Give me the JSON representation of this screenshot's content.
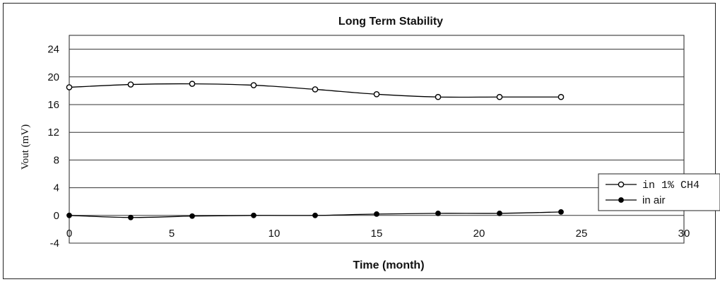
{
  "chart_data": {
    "type": "line",
    "title": "Long Term Stability",
    "xlabel": "Time (month)",
    "ylabel": "Vout (mV)",
    "xlim": [
      0,
      30
    ],
    "ylim": [
      -4,
      26
    ],
    "x_ticks": [
      "0",
      "5",
      "10",
      "15",
      "20",
      "25",
      "30"
    ],
    "y_ticks": [
      "-4",
      "0",
      "4",
      "8",
      "12",
      "16",
      "20",
      "24"
    ],
    "grid": "horizontal",
    "legend_position": "right",
    "series": [
      {
        "name": "in 1% CH4",
        "marker": "open-circle",
        "color": "#000000",
        "x": [
          0,
          3,
          6,
          9,
          12,
          15,
          18,
          21,
          24
        ],
        "values": [
          18.5,
          18.9,
          19.0,
          18.8,
          18.2,
          17.5,
          17.1,
          17.1,
          17.1
        ]
      },
      {
        "name": "in air",
        "marker": "filled-circle",
        "color": "#000000",
        "x": [
          0,
          3,
          6,
          9,
          12,
          15,
          18,
          21,
          24
        ],
        "values": [
          0.0,
          -0.3,
          -0.1,
          0.0,
          0.0,
          0.2,
          0.3,
          0.3,
          0.5
        ]
      }
    ]
  }
}
